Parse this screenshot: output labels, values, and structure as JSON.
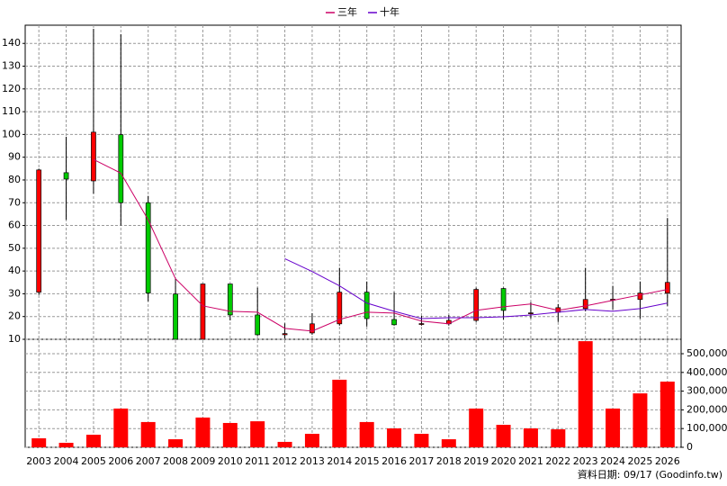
{
  "chart_data": {
    "type": "candlestick",
    "categories": [
      "2003",
      "2004",
      "2005",
      "2006",
      "2007",
      "2008",
      "2009",
      "2010",
      "2011",
      "2012",
      "2013",
      "2014",
      "2015",
      "2016",
      "2017",
      "2018",
      "2019",
      "2020",
      "2021",
      "2022",
      "2023",
      "2024",
      "2025",
      "2026"
    ],
    "open": [
      30.7,
      83.2,
      79.6,
      99.9,
      70,
      29.9,
      10,
      34.3,
      20.7,
      12,
      12.8,
      16.8,
      30.7,
      18.7,
      16.8,
      16.8,
      18.3,
      32.3,
      21.5,
      21.9,
      23.5,
      27.5,
      27.5,
      30.3
    ],
    "high": [
      85,
      99,
      146.4,
      144,
      73,
      36.6,
      34.3,
      34.3,
      32.7,
      17,
      21.5,
      41.4,
      35.4,
      30.7,
      20.3,
      20.7,
      32.7,
      32.7,
      26.3,
      25.5,
      41.4,
      33.5,
      35.4,
      63.3
    ],
    "low": [
      29.5,
      62.5,
      74,
      60,
      26.7,
      10,
      10,
      18.3,
      11.6,
      10.4,
      12,
      16,
      15.6,
      16,
      16,
      16,
      17.6,
      18.7,
      19.1,
      17.6,
      22.3,
      23.1,
      19.1,
      24.7
    ],
    "close": [
      84.4,
      80.4,
      101,
      70,
      30.3,
      10,
      34.3,
      20.7,
      12,
      12.5,
      16.8,
      30.7,
      19.1,
      16.4,
      16.9,
      18.3,
      31.9,
      22.7,
      21.6,
      23.9,
      27.5,
      27.6,
      30.3,
      35
    ],
    "up_color": "#ff0000",
    "down_color": "#00cc00",
    "series": [
      {
        "name": "三年",
        "color": "#cc0066",
        "values": [
          null,
          null,
          89,
          83,
          62.5,
          36.6,
          24.7,
          22.3,
          21.9,
          14.8,
          13.6,
          18.7,
          21.9,
          21.5,
          18,
          16.8,
          22.7,
          24.3,
          25.5,
          22.7,
          24.7,
          27.1,
          29.5,
          31.9
        ]
      },
      {
        "name": "十年",
        "color": "#6600cc",
        "values": [
          null,
          null,
          null,
          null,
          null,
          null,
          null,
          null,
          null,
          45.4,
          39.8,
          33.5,
          25.9,
          22.3,
          19.1,
          19.5,
          19.5,
          19.9,
          20.7,
          21.9,
          23.1,
          22.3,
          23.5,
          25.9
        ]
      }
    ],
    "ylim": [
      10,
      148
    ],
    "yticks": [
      10,
      20,
      30,
      40,
      50,
      60,
      70,
      80,
      90,
      100,
      110,
      120,
      130,
      140
    ],
    "volume": {
      "color": "#ff0000",
      "values": [
        48000,
        24000,
        67000,
        207000,
        135000,
        43000,
        159000,
        130000,
        139000,
        29000,
        72000,
        361000,
        135000,
        101000,
        72000,
        43000,
        207000,
        120000,
        101000,
        96000,
        567000,
        207000,
        288000,
        351000
      ],
      "ylim": [
        0,
        577000
      ],
      "yticks": [
        0,
        {
          "value": 100000,
          "label": "100,000"
        },
        {
          "value": 200000,
          "label": "200,000"
        },
        {
          "value": 300000,
          "label": "300,000"
        },
        {
          "value": 400000,
          "label": "400,000"
        },
        {
          "value": 500000,
          "label": "500,000"
        }
      ]
    },
    "grid": true,
    "footnote": "資料日期: 09/17 (Goodinfo.tw)"
  }
}
